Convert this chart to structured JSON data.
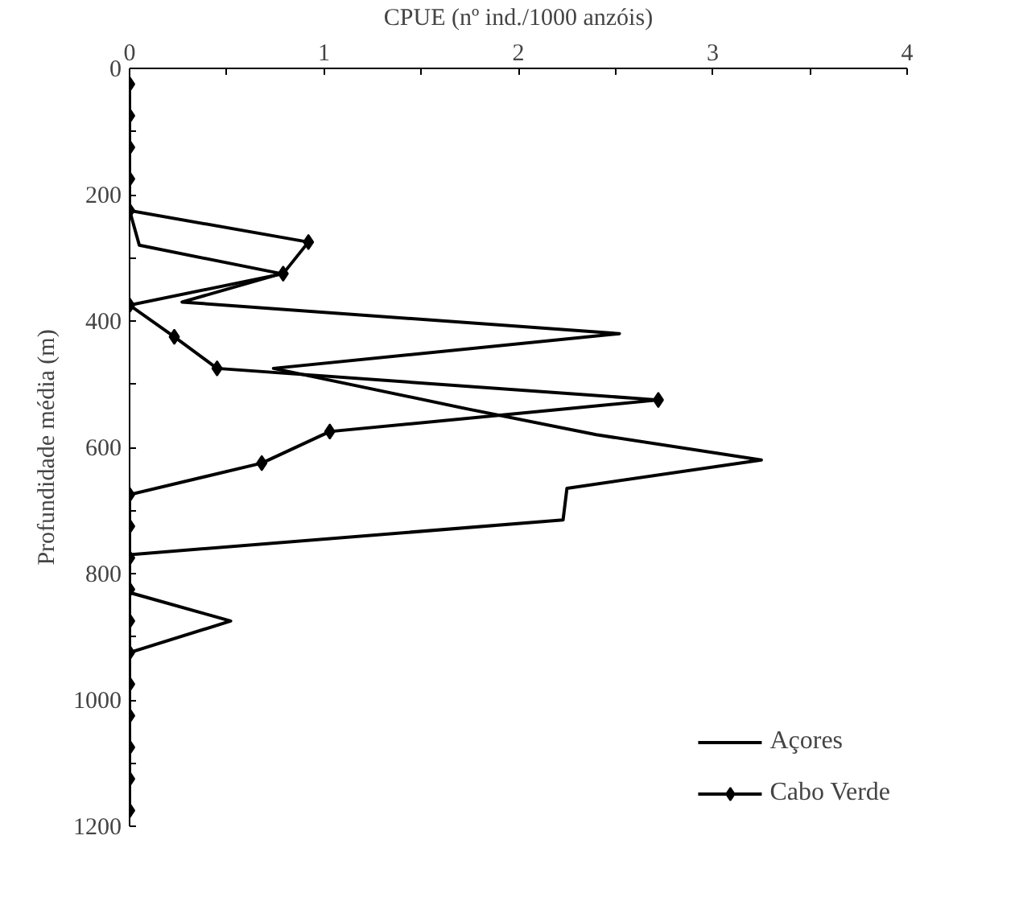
{
  "chart_data": {
    "type": "line",
    "xlabel": "CPUE (nº ind./1000 anzóis)",
    "ylabel": "Profundidade média (m)",
    "xlim": [
      0,
      4
    ],
    "xticks": [
      0,
      {
        "value": 0.5,
        "label": null
      },
      1,
      {
        "value": 1.5,
        "label": null
      },
      2,
      {
        "value": 2.5,
        "label": null
      },
      3,
      {
        "value": 3.5,
        "label": null
      },
      4
    ],
    "ylim": [
      1200,
      0
    ],
    "yticks": [
      0,
      {
        "value": 100,
        "label": null
      },
      200,
      {
        "value": 300,
        "label": null
      },
      400,
      {
        "value": 500,
        "label": null
      },
      600,
      {
        "value": 700,
        "label": null
      },
      800,
      {
        "value": 900,
        "label": null
      },
      1000,
      {
        "value": 1100,
        "label": null
      },
      1200
    ],
    "grid": false,
    "legend": "bottom right",
    "series": [
      {
        "name": "Açores",
        "color": "#000000",
        "marker": "none",
        "x": [
          0,
          0,
          0.05,
          0.78,
          0.27,
          2.52,
          0.74,
          1.75,
          2.4,
          3.25,
          2.25,
          2.23,
          0,
          0,
          0.52,
          0,
          0
        ],
        "values": [
          25,
          225,
          280,
          325,
          370,
          420,
          475,
          540,
          580,
          620,
          665,
          715,
          770,
          830,
          875,
          925,
          1175
        ]
      },
      {
        "name": "Cabo Verde",
        "color": "#000000",
        "marker": "diamond",
        "x": [
          0,
          0,
          0,
          0,
          0,
          0.92,
          0.79,
          0,
          0.23,
          0.45,
          2.72,
          1.03,
          0.68,
          0,
          0,
          0,
          0,
          0,
          0,
          0,
          0,
          0,
          0,
          0
        ],
        "values": [
          25,
          75,
          125,
          175,
          225,
          275,
          325,
          375,
          425,
          475,
          525,
          575,
          625,
          675,
          725,
          775,
          825,
          875,
          925,
          975,
          1025,
          1075,
          1125,
          1175
        ]
      }
    ]
  }
}
